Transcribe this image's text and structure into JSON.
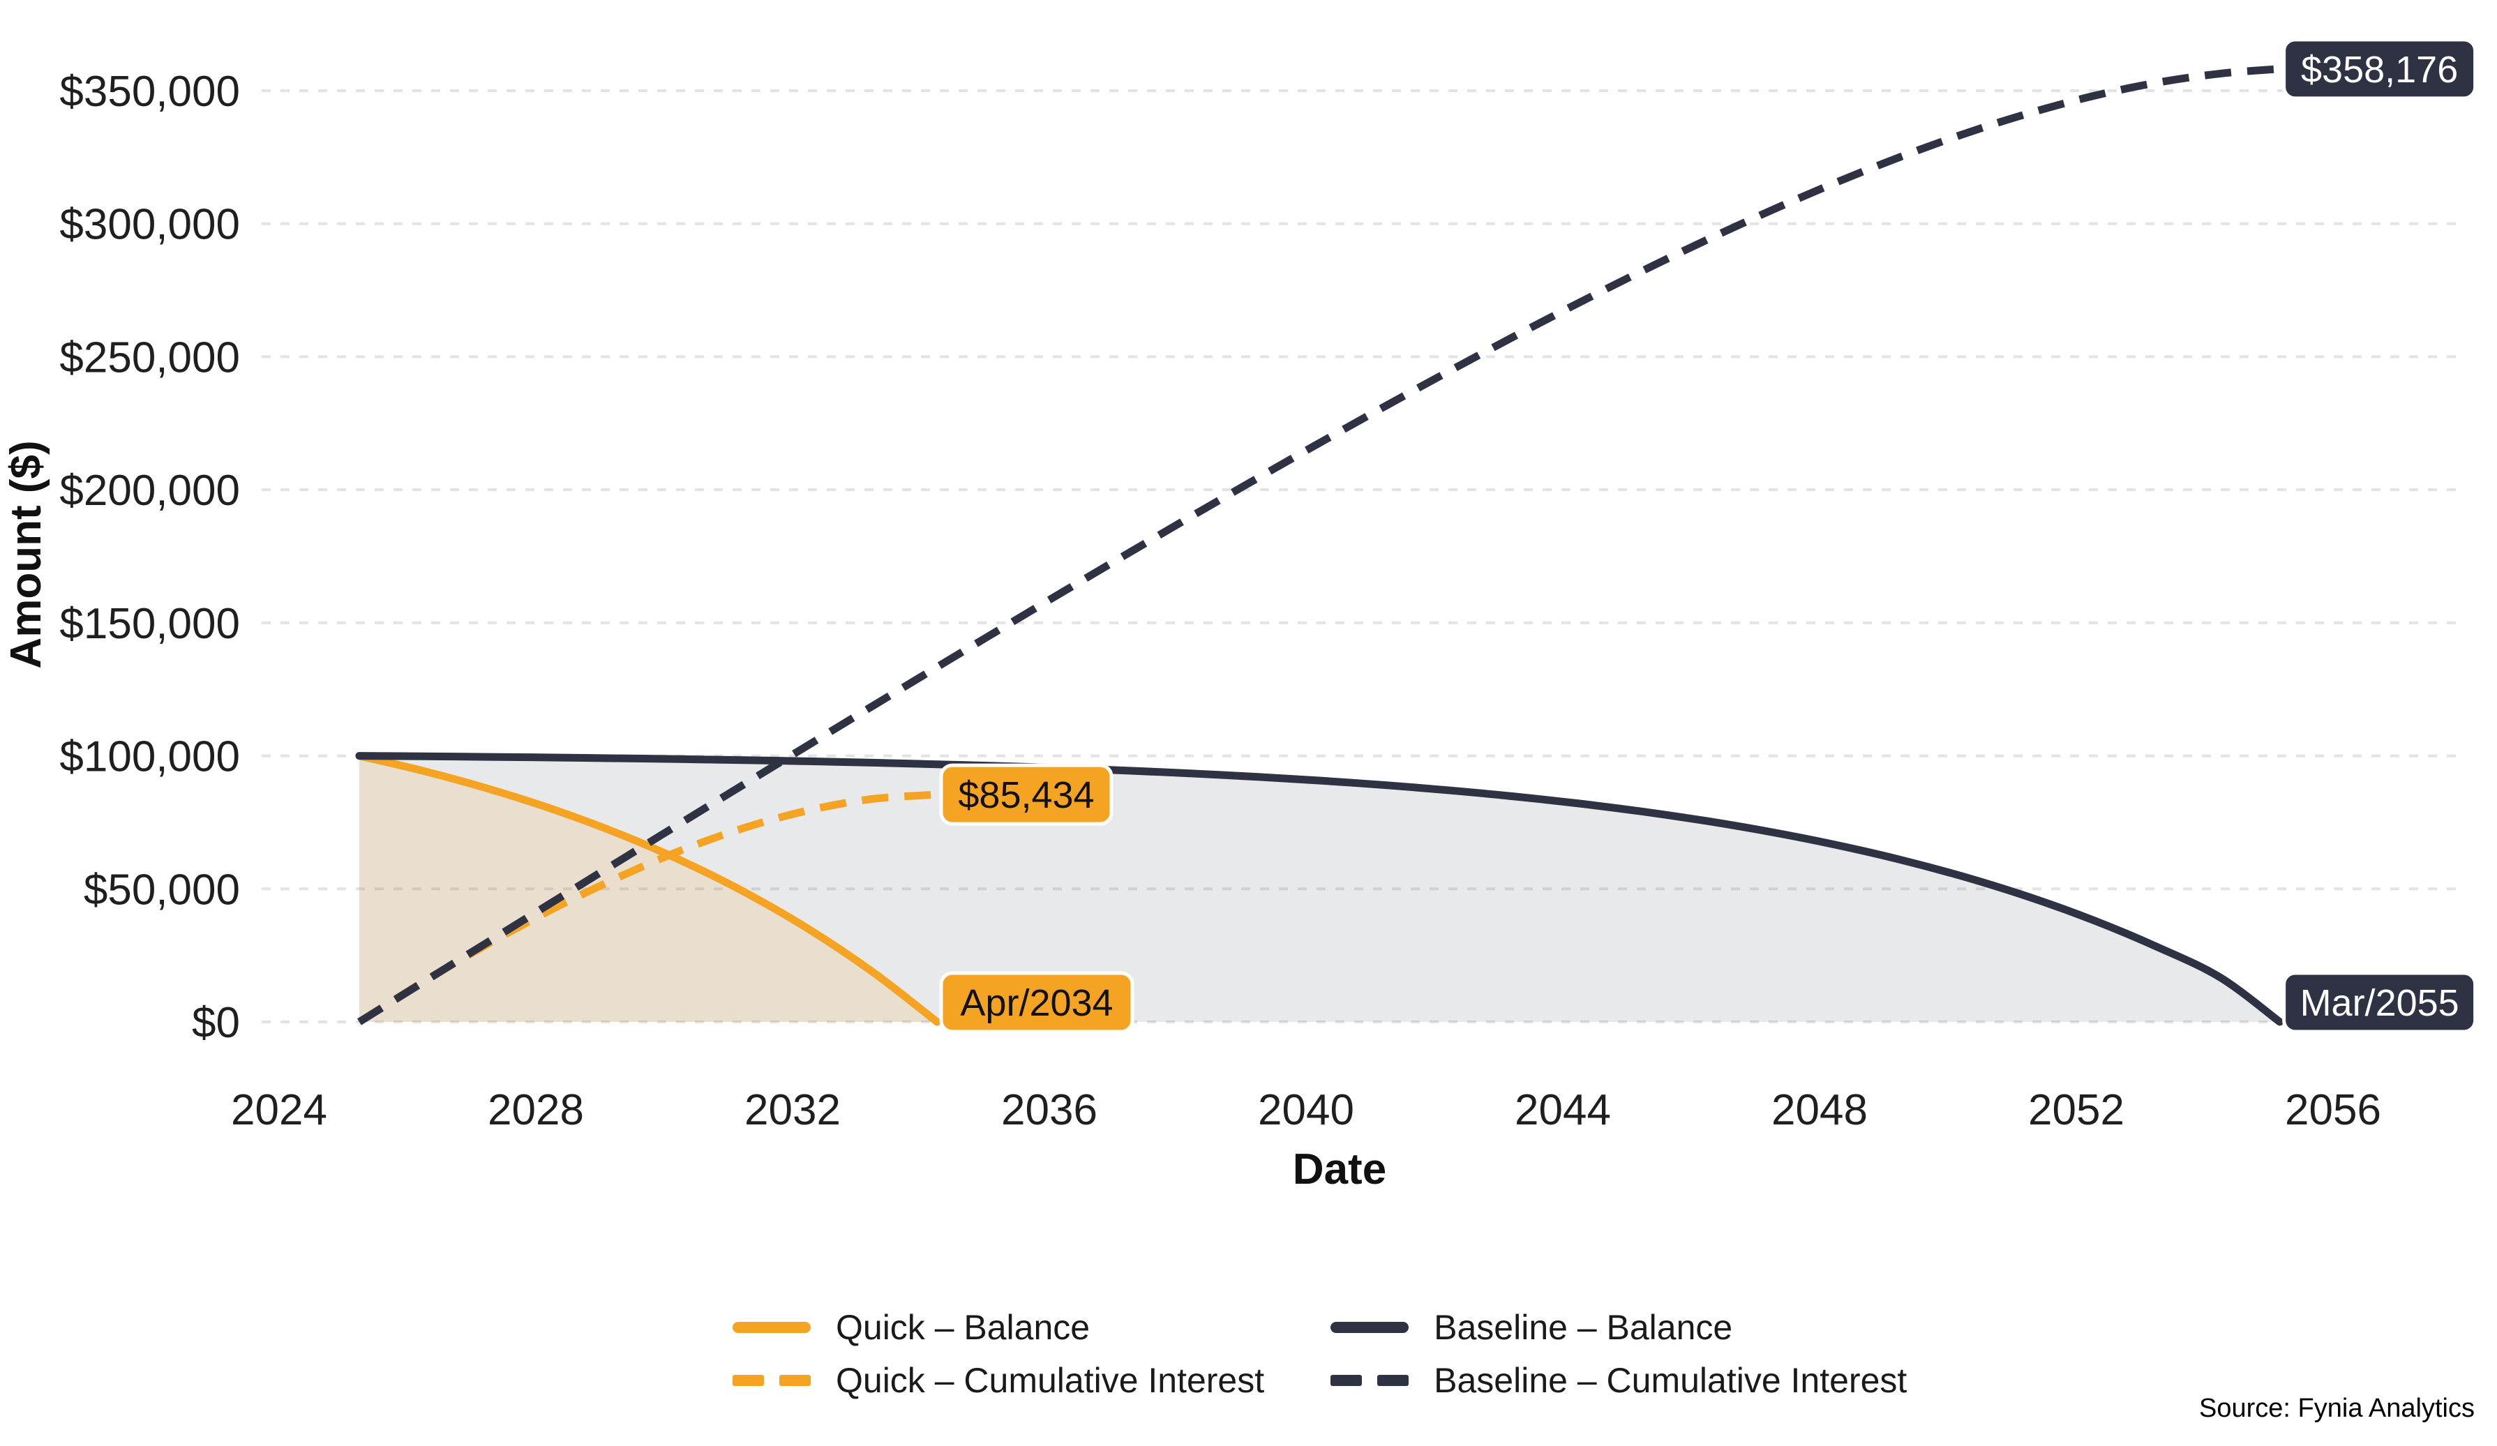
{
  "chart_data": {
    "type": "line",
    "title": "",
    "xlabel": "Date",
    "ylabel": "Amount ($)",
    "grid": "horizontal-dashed",
    "legend_position": "bottom-center",
    "xlim": [
      2023.7,
      2058.0
    ],
    "ylim": [
      0,
      367000
    ],
    "x_ticks": [
      2024,
      2028,
      2032,
      2036,
      2040,
      2044,
      2048,
      2052,
      2056
    ],
    "y_ticks": [
      {
        "v": 0,
        "label": "$0"
      },
      {
        "v": 50000,
        "label": "$50,000"
      },
      {
        "v": 100000,
        "label": "$100,000"
      },
      {
        "v": 150000,
        "label": "$150,000"
      },
      {
        "v": 200000,
        "label": "$200,000"
      },
      {
        "v": 250000,
        "label": "$250,000"
      },
      {
        "v": 300000,
        "label": "$300,000"
      },
      {
        "v": 350000,
        "label": "$350,000"
      }
    ],
    "series": [
      {
        "key": "quick_balance",
        "name": "Quick – Balance",
        "color": "#F5A322",
        "style": "solid",
        "area": true,
        "area_color": "rgba(245,163,34,0.14)",
        "x": [
          2025.25,
          2026.25,
          2027.25,
          2028.25,
          2029.25,
          2030.25,
          2031.25,
          2032.25,
          2033.25,
          2034.25
        ],
        "values": [
          100000,
          94309,
          87703,
          80035,
          71135,
          60804,
          48812,
          34892,
          18735,
          0
        ]
      },
      {
        "key": "quick_interest",
        "name": "Quick – Cumulative Interest",
        "color": "#F5A322",
        "style": "dashed",
        "area": false,
        "x": [
          2025.25,
          2026.25,
          2027.25,
          2028.25,
          2029.25,
          2030.25,
          2031.25,
          2032.25,
          2033.25,
          2034.25
        ],
        "values": [
          0,
          15086,
          29227,
          42272,
          53927,
          64343,
          72927,
          79521,
          83806,
          85434
        ]
      },
      {
        "key": "baseline_balance",
        "name": "Baseline – Balance",
        "color": "#2E3242",
        "style": "solid",
        "area": true,
        "area_color": "rgba(47,51,66,0.11)",
        "x": [
          2025.25,
          2026.25,
          2027.25,
          2028.25,
          2029.25,
          2030.25,
          2031.25,
          2032.25,
          2033.25,
          2034.25,
          2035.25,
          2036.25,
          2037.25,
          2038.25,
          2039.25,
          2040.25,
          2041.25,
          2042.25,
          2043.25,
          2044.25,
          2045.25,
          2046.25,
          2047.25,
          2048.25,
          2049.25,
          2050.25,
          2051.25,
          2052.25,
          2053.25,
          2054.25,
          2055.17
        ],
        "values": [
          100000,
          99820,
          99611,
          99368,
          99086,
          98759,
          98379,
          97938,
          97426,
          96832,
          96143,
          95343,
          94414,
          93336,
          92085,
          90633,
          88947,
          86990,
          84719,
          82082,
          79022,
          75469,
          71345,
          66559,
          61003,
          54554,
          47069,
          38380,
          28295,
          16588,
          0
        ]
      },
      {
        "key": "baseline_interest",
        "name": "Baseline – Cumulative Interest",
        "color": "#2E3242",
        "style": "dashed",
        "area": false,
        "x": [
          2025.25,
          2026.25,
          2027.25,
          2028.25,
          2029.25,
          2030.25,
          2031.25,
          2032.25,
          2033.25,
          2034.25,
          2035.25,
          2036.25,
          2037.25,
          2038.25,
          2039.25,
          2040.25,
          2041.25,
          2042.25,
          2043.25,
          2044.25,
          2045.25,
          2046.25,
          2047.25,
          2048.25,
          2049.25,
          2050.25,
          2051.25,
          2052.25,
          2053.25,
          2054.25,
          2055.17
        ],
        "values": [
          0,
          14988,
          29947,
          44872,
          59758,
          74599,
          89387,
          104114,
          118770,
          133344,
          147823,
          162191,
          176430,
          190520,
          204437,
          218153,
          231635,
          244846,
          257743,
          270274,
          282382,
          293997,
          305041,
          315423,
          325035,
          333754,
          341437,
          347916,
          352999,
          356460,
          358176
        ]
      }
    ],
    "annotations": [
      {
        "name": "baseline-interest-end",
        "text": "$358,176",
        "series": "baseline_interest",
        "theme": "dark",
        "kind": "value"
      },
      {
        "name": "quick-interest-end",
        "text": "$85,434",
        "series": "quick_interest",
        "theme": "orange",
        "kind": "value"
      },
      {
        "name": "quick-payoff-date",
        "text": "Apr/2034",
        "series": "quick_balance",
        "theme": "orange",
        "kind": "date"
      },
      {
        "name": "baseline-payoff-date",
        "text": "Mar/2055",
        "series": "baseline_balance",
        "theme": "dark",
        "kind": "date"
      }
    ],
    "annotation_themes": {
      "dark": {
        "bg": "#2E3242",
        "text": "#FFFFFF",
        "border": "#FFFFFF"
      },
      "orange": {
        "bg": "#F5A322",
        "text": "#111111",
        "border": "#FFFFFF"
      }
    },
    "grid_color": "#E3E3E3",
    "tick_color": "#1F1F1F"
  },
  "source": "Source: Fynia Analytics"
}
